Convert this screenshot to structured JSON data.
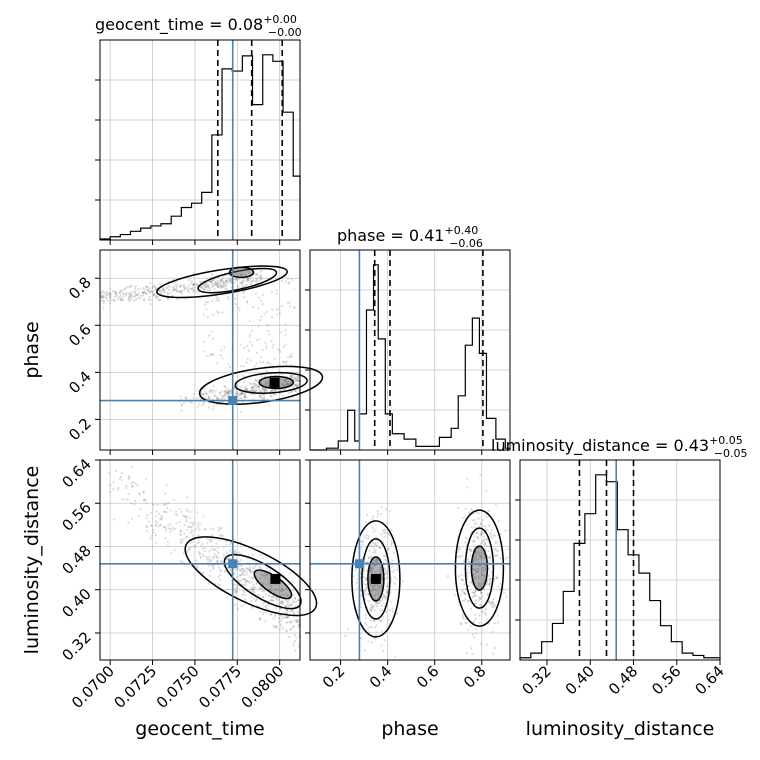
{
  "chart_data": [
    {
      "type": "corner",
      "parameters": [
        "geocent_time",
        "phase",
        "luminosity_distance"
      ],
      "truth": {
        "geocent_time": 0.07723,
        "phase": 0.28,
        "luminosity_distance": 0.448
      },
      "colors": {
        "truth": "#4682b4",
        "hist": "#000000",
        "grid": "#c8c8c8",
        "scatter": "#808080"
      },
      "grid": true
    },
    {
      "type": "histogram",
      "panel": "geocent_time",
      "title": {
        "base": "geocent_time = 0.08",
        "sup": "+0.00",
        "sub": "−0.00"
      },
      "xlim": [
        0.0694,
        0.0812
      ],
      "xticks": [
        0.07,
        0.0725,
        0.075,
        0.0775,
        0.08
      ],
      "xticklabels": [
        "0.0700",
        "0.0725",
        "0.0750",
        "0.0775",
        "0.0800"
      ],
      "xlabel": "geocent_time",
      "bin_edges": [
        0.0694,
        0.07,
        0.0706,
        0.0712,
        0.0718,
        0.0724,
        0.073,
        0.0736,
        0.0742,
        0.0748,
        0.0754,
        0.076,
        0.0766,
        0.0772,
        0.0778,
        0.0784,
        0.079,
        0.0796,
        0.0802,
        0.0808,
        0.0812
      ],
      "counts": [
        1,
        3,
        5,
        8,
        11,
        13,
        15,
        22,
        30,
        34,
        44,
        97,
        158,
        156,
        170,
        125,
        171,
        165,
        118,
        59
      ],
      "quantiles": [
        0.07635,
        0.07835,
        0.08015
      ],
      "truth": 0.07723
    },
    {
      "type": "histogram",
      "panel": "phase",
      "title": {
        "base": "phase = 0.41",
        "sup": "+0.40",
        "sub": "−0.06"
      },
      "xlim": [
        0.07,
        0.92
      ],
      "xticks": [
        0.2,
        0.4,
        0.6,
        0.8
      ],
      "xticklabels": [
        "0.2",
        "0.4",
        "0.6",
        "0.8"
      ],
      "xlabel": "phase",
      "bin_edges": [
        0.07,
        0.14,
        0.19,
        0.23,
        0.26,
        0.28,
        0.31,
        0.34,
        0.36,
        0.39,
        0.42,
        0.47,
        0.52,
        0.57,
        0.62,
        0.67,
        0.7,
        0.73,
        0.76,
        0.79,
        0.82,
        0.86,
        0.9,
        0.92
      ],
      "counts": [
        0,
        2,
        10,
        44,
        10,
        40,
        155,
        205,
        123,
        40,
        18,
        12,
        4,
        4,
        14,
        24,
        60,
        116,
        146,
        107,
        35,
        12,
        2
      ],
      "quantiles": [
        0.345,
        0.41,
        0.805
      ],
      "truth": 0.28
    },
    {
      "type": "histogram",
      "panel": "luminosity_distance",
      "title": {
        "base": "luminosity_distance = 0.43",
        "sup": "+0.05",
        "sub": "−0.05"
      },
      "xlim": [
        0.27,
        0.64
      ],
      "xticks": [
        0.32,
        0.4,
        0.48,
        0.56,
        0.64
      ],
      "xticklabels": [
        "0.32",
        "0.40",
        "0.48",
        "0.56",
        "0.64"
      ],
      "xlabel": "luminosity_distance",
      "bin_edges": [
        0.27,
        0.29,
        0.31,
        0.33,
        0.35,
        0.37,
        0.39,
        0.41,
        0.43,
        0.45,
        0.47,
        0.49,
        0.51,
        0.53,
        0.55,
        0.57,
        0.59,
        0.61,
        0.64
      ],
      "counts": [
        1,
        3,
        8,
        16,
        30,
        51,
        64,
        81,
        78,
        57,
        46,
        38,
        26,
        15,
        8,
        3,
        2,
        1
      ],
      "quantiles": [
        0.38,
        0.43,
        0.48
      ],
      "truth": 0.448
    },
    {
      "type": "scatter",
      "panel": "phase vs geocent_time",
      "xlim": [
        0.0694,
        0.0812
      ],
      "ylim": [
        0.07,
        0.92
      ],
      "ylabel": "phase",
      "yticks": [
        0.2,
        0.4,
        0.6,
        0.8
      ],
      "yticklabels": [
        "0.2",
        "0.4",
        "0.6",
        "0.8"
      ],
      "clusters": [
        {
          "x_range": [
            0.0694,
            0.0788
          ],
          "y_center": 0.74,
          "y_spread": 0.025,
          "weight": 0.35
        },
        {
          "x_range": [
            0.0764,
            0.0812
          ],
          "y_center": 0.36,
          "y_spread": 0.035,
          "weight": 0.45
        },
        {
          "x_range": [
            0.0735,
            0.078
          ],
          "y_center": 0.29,
          "y_spread": 0.02,
          "weight": 0.2
        }
      ],
      "peaks": [
        {
          "x": 0.0797,
          "y": 0.356
        }
      ],
      "truth": {
        "x": 0.07723,
        "y": 0.28
      }
    },
    {
      "type": "scatter",
      "panel": "luminosity_distance vs geocent_time",
      "xlim": [
        0.0694,
        0.0812
      ],
      "ylim": [
        0.27,
        0.64
      ],
      "ylabel": "luminosity_distance",
      "yticks": [
        0.32,
        0.4,
        0.48,
        0.56,
        0.64
      ],
      "yticklabels": [
        "0.32",
        "0.40",
        "0.48",
        "0.56",
        "0.64"
      ],
      "trend": {
        "x_start": 0.0694,
        "y_start": 0.62,
        "x_end": 0.0812,
        "y_end": 0.35
      },
      "peaks": [
        {
          "x": 0.07975,
          "y": 0.42
        }
      ],
      "truth": {
        "x": 0.07723,
        "y": 0.448
      }
    },
    {
      "type": "scatter",
      "panel": "luminosity_distance vs phase",
      "xlim": [
        0.07,
        0.92
      ],
      "ylim": [
        0.27,
        0.64
      ],
      "clusters": [
        {
          "x_center": 0.35,
          "x_spread": 0.04,
          "y_center": 0.42,
          "y_spread": 0.05
        },
        {
          "x_center": 0.79,
          "x_spread": 0.045,
          "y_center": 0.44,
          "y_spread": 0.06
        }
      ],
      "peaks": [
        {
          "x": 0.35,
          "y": 0.42
        }
      ],
      "truth": {
        "x": 0.28,
        "y": 0.448
      }
    }
  ]
}
